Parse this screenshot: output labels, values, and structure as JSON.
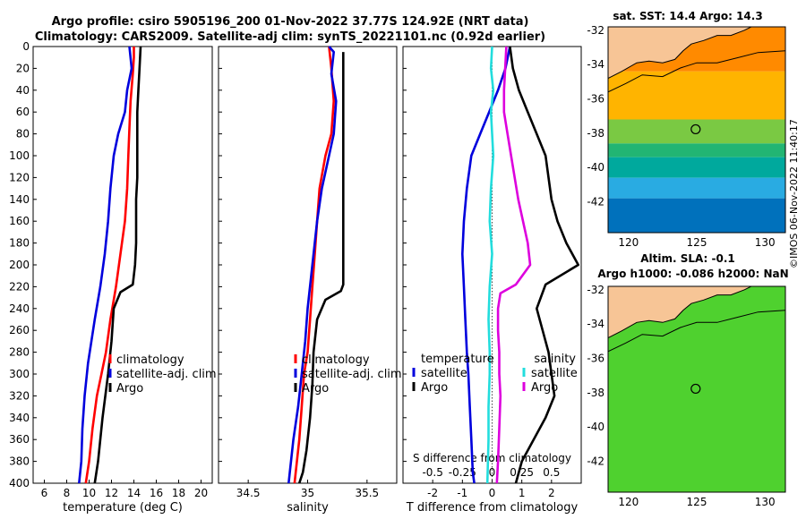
{
  "title": {
    "line1": "Argo profile: csiro 5905196_200 01-Nov-2022 37.77S 124.92E (NRT data)",
    "line2": "Climatology: CARS2009. Satellite-adj clim: synTS_20221101.nc (0.92d earlier)"
  },
  "stamp": "©IMOS 06-Nov-2022 11:40:17",
  "colors": {
    "climatology": "#ff0000",
    "satellite": "#0000dd",
    "argo": "#000000",
    "t_satellite": "#0000dd",
    "s_satellite": "#22dddd",
    "s_argo": "#dd00dd",
    "land": "#f7c596",
    "coast": "#000000",
    "marker": "#000000"
  },
  "chart_data": [
    {
      "type": "line",
      "name": "temperature-profile",
      "xlabel": "temperature (deg C)",
      "ylabel": "",
      "xlim": [
        5,
        21
      ],
      "ylim": [
        400,
        0
      ],
      "xticks": [
        6,
        8,
        10,
        12,
        14,
        16,
        18,
        20
      ],
      "yticks": [
        0,
        20,
        40,
        60,
        80,
        100,
        120,
        140,
        160,
        180,
        200,
        220,
        240,
        260,
        280,
        300,
        320,
        340,
        360,
        380,
        400
      ],
      "grid": false,
      "legend_position": "bottom-right",
      "series": [
        {
          "name": "climatology",
          "color": "#ff0000",
          "x": [
            14.0,
            14.0,
            13.9,
            13.7,
            13.6,
            13.5,
            13.4,
            13.2,
            12.8,
            12.4,
            11.9,
            11.5,
            11.1,
            10.7,
            10.3,
            10.0,
            9.7
          ],
          "y": [
            0,
            10,
            25,
            50,
            75,
            100,
            130,
            160,
            190,
            220,
            250,
            280,
            300,
            320,
            350,
            380,
            400
          ]
        },
        {
          "name": "satellite-adj. clim",
          "color": "#0000dd",
          "x": [
            13.6,
            13.8,
            13.4,
            13.2,
            12.6,
            12.2,
            11.9,
            11.7,
            11.4,
            11.0,
            10.5,
            9.9,
            9.6,
            9.4,
            9.3,
            9.1
          ],
          "y": [
            0,
            20,
            40,
            60,
            80,
            100,
            130,
            160,
            190,
            220,
            250,
            290,
            320,
            350,
            380,
            400
          ]
        },
        {
          "name": "Argo",
          "color": "#000000",
          "x": [
            14.6,
            14.5,
            14.4,
            14.3,
            14.3,
            14.3,
            14.3,
            14.2,
            14.2,
            14.2,
            14.1,
            13.9,
            12.8,
            12.2,
            12.0,
            11.7,
            11.2,
            10.8,
            10.5
          ],
          "y": [
            0,
            20,
            40,
            60,
            80,
            100,
            120,
            140,
            160,
            180,
            200,
            218,
            225,
            240,
            270,
            300,
            340,
            380,
            400
          ]
        }
      ]
    },
    {
      "type": "line",
      "name": "salinity-profile",
      "xlabel": "salinity",
      "xlim": [
        34.25,
        35.75
      ],
      "ylim": [
        400,
        0
      ],
      "xticks": [
        34.5,
        35,
        35.5
      ],
      "xtick_labels": [
        "34.5",
        "35",
        "35.5"
      ],
      "grid": false,
      "legend_position": "bottom-right",
      "series": [
        {
          "name": "climatology",
          "color": "#ff0000",
          "x": [
            35.18,
            35.2,
            35.22,
            35.2,
            35.15,
            35.1,
            35.08,
            35.06,
            35.04,
            35.02,
            35.0,
            34.97,
            34.95,
            34.93,
            34.9,
            34.89
          ],
          "y": [
            0,
            20,
            50,
            80,
            100,
            130,
            160,
            190,
            220,
            250,
            280,
            300,
            330,
            360,
            390,
            400
          ]
        },
        {
          "name": "satellite-adj. clim",
          "color": "#0000dd",
          "x": [
            35.18,
            35.22,
            35.2,
            35.24,
            35.22,
            35.18,
            35.12,
            35.08,
            35.04,
            35.0,
            34.98,
            34.95,
            34.92,
            34.88,
            34.85,
            34.84
          ],
          "y": [
            0,
            5,
            25,
            50,
            80,
            100,
            130,
            160,
            200,
            240,
            270,
            300,
            330,
            360,
            390,
            400
          ]
        },
        {
          "name": "Argo",
          "color": "#000000",
          "x": [
            35.3,
            35.3,
            35.3,
            35.3,
            35.3,
            35.3,
            35.3,
            35.28,
            35.15,
            35.08,
            35.05,
            35.04,
            35.02,
            34.99,
            34.96,
            34.93
          ],
          "y": [
            5,
            40,
            80,
            120,
            160,
            200,
            218,
            224,
            232,
            250,
            280,
            310,
            340,
            370,
            390,
            400
          ]
        }
      ]
    },
    {
      "type": "line",
      "name": "difference-profile",
      "xlabel": "T difference from climatology",
      "top_axis_label": "S difference from climatology",
      "xlim": [
        -3,
        3
      ],
      "ylim": [
        400,
        0
      ],
      "xticks": [
        -2,
        -1,
        0,
        1,
        2
      ],
      "xtick_labels": [
        "-2",
        "-1",
        "0",
        "1",
        "2"
      ],
      "top_ticks": [
        -0.5,
        -0.25,
        0,
        0.25,
        0.5
      ],
      "top_tick_labels": [
        "-0.5",
        "-0.25",
        "0",
        "0.25",
        "0.5"
      ],
      "top_axis_range": [
        -0.75,
        0.75
      ],
      "zero_line": true,
      "legend_position": "bottom",
      "legend_groups": [
        "temperature",
        "salinity"
      ],
      "series": [
        {
          "name": "satellite",
          "group": "temperature",
          "axis": "T",
          "color": "#0000dd",
          "x": [
            0.6,
            0.45,
            0.2,
            -0.1,
            -0.4,
            -0.7,
            -0.85,
            -0.95,
            -1.0,
            -0.95,
            -0.9,
            -0.85,
            -0.8,
            -0.75,
            -0.7,
            -0.65,
            -0.6
          ],
          "y": [
            0,
            20,
            40,
            60,
            80,
            100,
            130,
            160,
            190,
            220,
            250,
            280,
            300,
            330,
            360,
            390,
            400
          ]
        },
        {
          "name": "Argo",
          "group": "temperature",
          "axis": "T",
          "color": "#000000",
          "x": [
            0.6,
            0.7,
            0.9,
            1.2,
            1.5,
            1.8,
            1.9,
            2.0,
            2.2,
            2.5,
            2.9,
            1.8,
            1.5,
            1.7,
            1.9,
            2.0,
            2.1,
            1.8,
            1.4,
            1.0,
            0.8
          ],
          "y": [
            0,
            20,
            40,
            60,
            80,
            100,
            120,
            140,
            160,
            180,
            200,
            218,
            240,
            260,
            280,
            300,
            320,
            340,
            360,
            380,
            400
          ]
        },
        {
          "name": "satellite",
          "group": "salinity",
          "axis": "S",
          "color": "#22dddd",
          "x": [
            0.0,
            -0.01,
            0.01,
            -0.01,
            0.0,
            0.01,
            -0.01,
            -0.02,
            0.0,
            -0.02,
            -0.03,
            -0.02,
            -0.02,
            -0.03,
            -0.03,
            -0.04
          ],
          "y": [
            0,
            20,
            40,
            60,
            80,
            100,
            130,
            160,
            190,
            220,
            250,
            280,
            300,
            330,
            360,
            400
          ]
        },
        {
          "name": "Argo",
          "group": "salinity",
          "axis": "S",
          "color": "#dd00dd",
          "x": [
            0.12,
            0.11,
            0.1,
            0.1,
            0.13,
            0.16,
            0.19,
            0.22,
            0.26,
            0.3,
            0.32,
            0.2,
            0.07,
            0.05,
            0.05,
            0.06,
            0.06,
            0.07,
            0.06,
            0.05,
            0.04
          ],
          "y": [
            0,
            20,
            40,
            60,
            80,
            100,
            120,
            140,
            160,
            180,
            200,
            218,
            226,
            240,
            260,
            280,
            300,
            320,
            350,
            380,
            400
          ]
        }
      ]
    },
    {
      "type": "heatmap",
      "name": "sst-map",
      "title": "sat. SST: 14.4 Argo: 14.3",
      "xlim": [
        118.5,
        131.5
      ],
      "ylim": [
        -43.8,
        -31.8
      ],
      "xticks": [
        120,
        125,
        130
      ],
      "yticks": [
        -32,
        -34,
        -36,
        -38,
        -40,
        -42
      ],
      "marker": {
        "lon": 124.92,
        "lat": -37.77
      },
      "bands": [
        {
          "lat_from": -31.8,
          "lat_to": -34.4,
          "color": "#ff8a00"
        },
        {
          "lat_from": -34.4,
          "lat_to": -37.2,
          "color": "#ffb400"
        },
        {
          "lat_from": -37.2,
          "lat_to": -38.6,
          "color": "#7ac943"
        },
        {
          "lat_from": -38.6,
          "lat_to": -39.4,
          "color": "#22b573"
        },
        {
          "lat_from": -39.4,
          "lat_to": -40.6,
          "color": "#00a99d"
        },
        {
          "lat_from": -40.6,
          "lat_to": -41.8,
          "color": "#29abe2"
        },
        {
          "lat_from": -41.8,
          "lat_to": -43.8,
          "color": "#0071bc"
        }
      ]
    },
    {
      "type": "heatmap",
      "name": "sla-map",
      "title": "Altim. SLA: -0.1",
      "subtitle": "Argo h1000: -0.086 h2000: NaN",
      "xlim": [
        118.5,
        131.5
      ],
      "ylim": [
        -43.8,
        -31.8
      ],
      "xticks": [
        120,
        125,
        130
      ],
      "yticks": [
        -32,
        -34,
        -36,
        -38,
        -40,
        -42
      ],
      "marker": {
        "lon": 124.92,
        "lat": -37.77
      },
      "bands": [
        {
          "lat_from": -31.8,
          "lat_to": -43.8,
          "color": "#4fd12f"
        }
      ]
    }
  ]
}
